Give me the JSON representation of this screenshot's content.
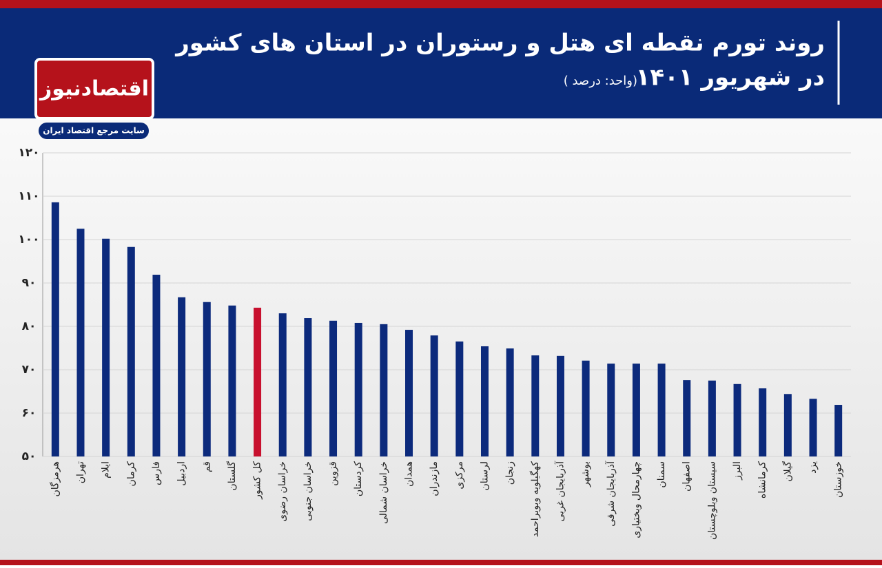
{
  "header": {
    "title_line1": "روند تورم نقطه ای هتل و رستوران در استان های کشور",
    "title_line2": "در شهریور ۱۴۰۱",
    "unit": "(واحد: درصد )"
  },
  "logo": {
    "name": "اقتصادنیوز",
    "tagline": "سایت مرجع اقتصاد ایران"
  },
  "chart_data": {
    "type": "bar",
    "categories": [
      "هرمزگان",
      "تهران",
      "ایلام",
      "کرمان",
      "فارس",
      "اردبیل",
      "قم",
      "گلستان",
      "کل کشور",
      "خراسان رضوی",
      "خراسان جنوبی",
      "قزوین",
      "کردستان",
      "خراسان شمالی",
      "همدان",
      "مازندران",
      "مرکزی",
      "لرستان",
      "زنجان",
      "کهگیلویه وبویراحمد",
      "آذربایجان غربی",
      "بوشهر",
      "آذربایجان شرقی",
      "چهارمحال وبختیاری",
      "سمنان",
      "اصفهان",
      "سیستان وبلوچستان",
      "البرز",
      "کرمانشاه",
      "گیلان",
      "یزد",
      "خوزستان"
    ],
    "values": [
      108.6,
      102.5,
      100.2,
      98.3,
      91.9,
      86.7,
      85.6,
      84.8,
      84.3,
      83.0,
      81.9,
      81.3,
      80.8,
      80.5,
      79.2,
      77.9,
      76.5,
      75.4,
      74.9,
      73.3,
      73.2,
      72.1,
      71.4,
      71.4,
      71.4,
      67.6,
      67.5,
      66.7,
      65.7,
      64.4,
      63.3,
      61.9
    ],
    "colors": [
      "#0c2a7c",
      "#0c2a7c",
      "#0c2a7c",
      "#0c2a7c",
      "#0c2a7c",
      "#0c2a7c",
      "#0c2a7c",
      "#0c2a7c",
      "#c8102e",
      "#0c2a7c",
      "#0c2a7c",
      "#0c2a7c",
      "#0c2a7c",
      "#0c2a7c",
      "#0c2a7c",
      "#0c2a7c",
      "#0c2a7c",
      "#0c2a7c",
      "#0c2a7c",
      "#0c2a7c",
      "#0c2a7c",
      "#0c2a7c",
      "#0c2a7c",
      "#0c2a7c",
      "#0c2a7c",
      "#0c2a7c",
      "#0c2a7c",
      "#0c2a7c",
      "#0c2a7c",
      "#0c2a7c",
      "#0c2a7c",
      "#0c2a7c"
    ],
    "ylim": [
      50,
      120
    ],
    "yticks": [
      {
        "value": 50,
        "label": "۵۰"
      },
      {
        "value": 60,
        "label": "۶۰"
      },
      {
        "value": 70,
        "label": "۷۰"
      },
      {
        "value": 80,
        "label": "۸۰"
      },
      {
        "value": 90,
        "label": "۹۰"
      },
      {
        "value": 100,
        "label": "۱۰۰"
      },
      {
        "value": 110,
        "label": "۱۱۰"
      },
      {
        "value": 120,
        "label": "۱۲۰"
      }
    ],
    "grid": true
  }
}
